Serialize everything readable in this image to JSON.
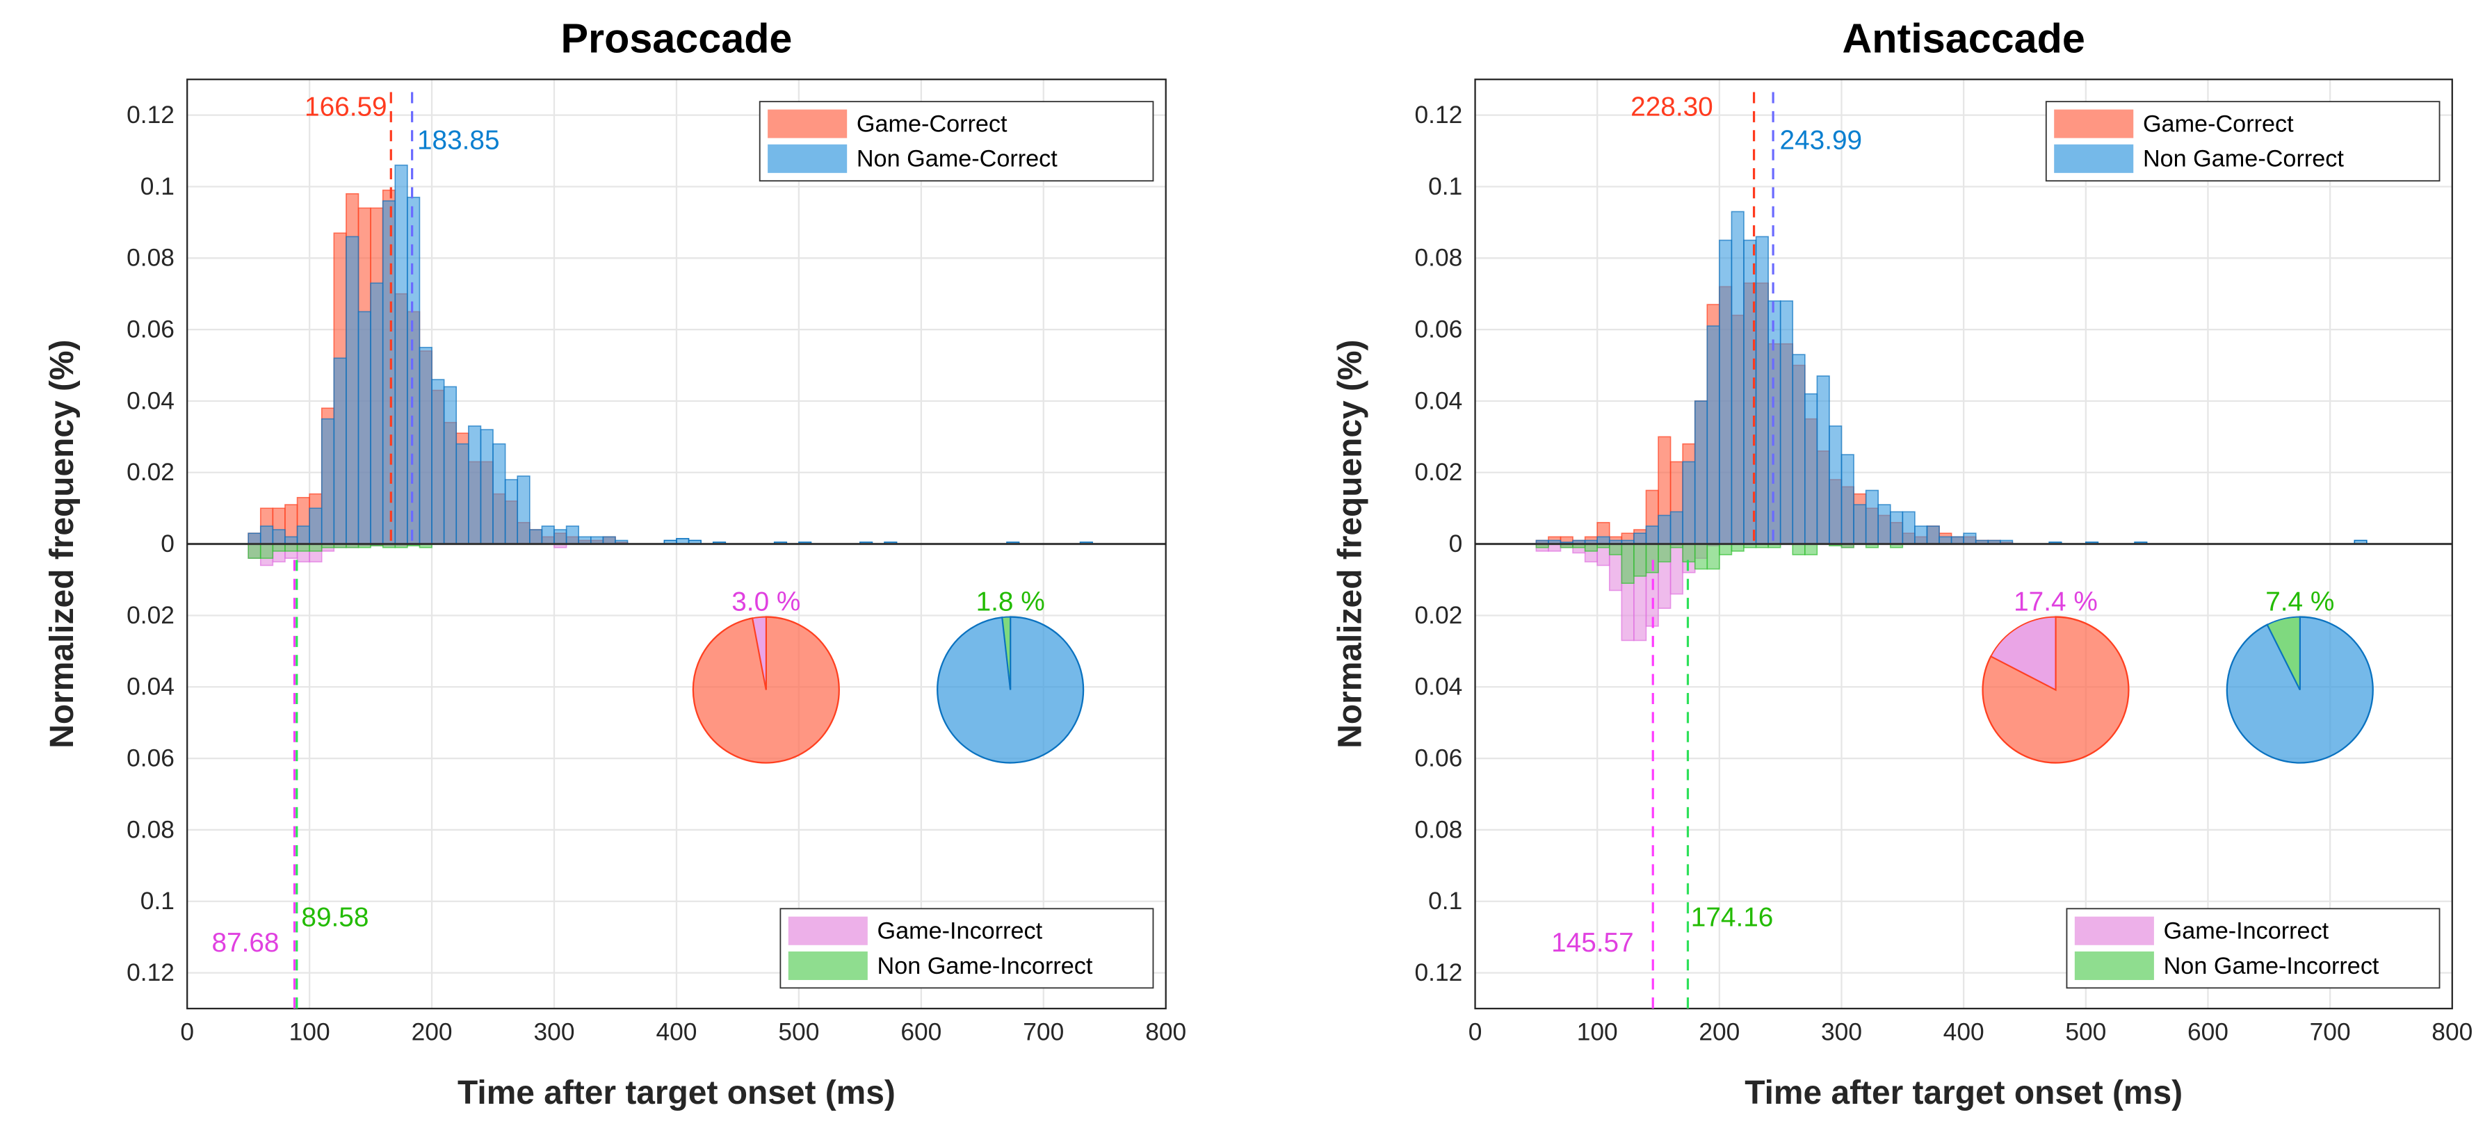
{
  "colors": {
    "game_correct": "#ff6a4d",
    "non_game_correct": "#3a9be0",
    "game_incorrect": "#e58ee0",
    "non_game_incorrect": "#5fcf5f",
    "label_red": "#ff3b1f",
    "label_blue": "#0a7fd0",
    "label_pink": "#e040e0",
    "label_green": "#22bb00",
    "median_blue_line": "#6a6aff"
  },
  "chart_data": [
    {
      "type": "bar",
      "title": "Prosaccade",
      "xlabel": "Time after target onset (ms)",
      "ylabel": "Normalized frequency (%)",
      "xlim": [
        0,
        800
      ],
      "ylim": [
        -0.13,
        0.13
      ],
      "xticks": [
        "0",
        "100",
        "200",
        "300",
        "400",
        "500",
        "600",
        "700",
        "800"
      ],
      "yticks_upper": [
        "0.12",
        "0.1",
        "0.08",
        "0.06",
        "0.04",
        "0.02",
        "0"
      ],
      "yticks_lower": [
        "0.02",
        "0.04",
        "0.06",
        "0.08",
        "0.1",
        "0.12"
      ],
      "grid": true,
      "bin_width": 10,
      "bin_start": 50,
      "series": [
        {
          "name": "Game-Correct",
          "direction": "up",
          "values": [
            0.003,
            0.01,
            0.01,
            0.011,
            0.013,
            0.014,
            0.038,
            0.087,
            0.098,
            0.094,
            0.094,
            0.099,
            0.07,
            0.065,
            0.054,
            0.043,
            0.034,
            0.031,
            0.023,
            0.023,
            0.014,
            0.012,
            0.006,
            0.004,
            0.002,
            0.003,
            0.002,
            0.001,
            0.001,
            0.002,
            0.0005
          ]
        },
        {
          "name": "Non Game-Correct",
          "direction": "up",
          "values": [
            0.003,
            0.005,
            0.004,
            0.002,
            0.005,
            0.01,
            0.035,
            0.052,
            0.086,
            0.065,
            0.073,
            0.096,
            0.106,
            0.097,
            0.055,
            0.046,
            0.044,
            0.028,
            0.033,
            0.032,
            0.028,
            0.018,
            0.019,
            0.004,
            0.005,
            0.004,
            0.005,
            0.002,
            0.002,
            0.002,
            0.001
          ]
        },
        {
          "name": "Game-Incorrect",
          "direction": "down",
          "values": [
            0.004,
            0.006,
            0.005,
            0.004,
            0.005,
            0.005,
            0.002,
            0.001,
            0.001,
            0.0005,
            0.0005,
            0.0005,
            0.0005,
            0,
            0,
            0,
            0,
            0,
            0,
            0,
            0,
            0,
            0,
            0,
            0,
            0.001
          ]
        },
        {
          "name": "Non Game-Incorrect",
          "direction": "down",
          "values": [
            0.004,
            0.004,
            0.002,
            0.002,
            0.002,
            0.002,
            0.001,
            0.001,
            0.001,
            0.001,
            0.0005,
            0.001,
            0.001,
            0.0005,
            0.001
          ]
        }
      ],
      "tail_non_game_correct": [
        [
          390,
          0.001
        ],
        [
          400,
          0.0015
        ],
        [
          410,
          0.001
        ],
        [
          430,
          0.0005
        ],
        [
          480,
          0.0005
        ],
        [
          500,
          0.0005
        ],
        [
          550,
          0.0005
        ],
        [
          570,
          0.0005
        ],
        [
          670,
          0.0005
        ],
        [
          730,
          0.0005
        ]
      ],
      "medians": [
        {
          "label": "166.59",
          "value": 166.59,
          "series": "Game-Correct",
          "side": "upper"
        },
        {
          "label": "183.85",
          "value": 183.85,
          "series": "Non Game-Correct",
          "side": "upper"
        },
        {
          "label": "87.68",
          "value": 87.68,
          "series": "Game-Incorrect",
          "side": "lower"
        },
        {
          "label": "89.58",
          "value": 89.58,
          "series": "Non Game-Incorrect",
          "side": "lower"
        }
      ],
      "pies": [
        {
          "label": "3.0 %",
          "incorrect_percent": 3.0,
          "group": "Game"
        },
        {
          "label": "1.8 %",
          "incorrect_percent": 1.8,
          "group": "Non Game"
        }
      ],
      "legend_upper": [
        "Game-Correct",
        "Non Game-Correct"
      ],
      "legend_lower": [
        "Game-Incorrect",
        "Non Game-Incorrect"
      ],
      "legend_placement": "top-right / bottom-right"
    },
    {
      "type": "bar",
      "title": "Antisaccade",
      "xlabel": "Time after target onset (ms)",
      "ylabel": "Normalized frequency (%)",
      "xlim": [
        0,
        800
      ],
      "ylim": [
        -0.13,
        0.13
      ],
      "xticks": [
        "0",
        "100",
        "200",
        "300",
        "400",
        "500",
        "600",
        "700",
        "800"
      ],
      "yticks_upper": [
        "0.12",
        "0.1",
        "0.08",
        "0.06",
        "0.04",
        "0.02",
        "0"
      ],
      "yticks_lower": [
        "0.02",
        "0.04",
        "0.06",
        "0.08",
        "0.1",
        "0.12"
      ],
      "grid": true,
      "bin_width": 10,
      "bin_start": 50,
      "series": [
        {
          "name": "Game-Correct",
          "direction": "up",
          "values": [
            0.001,
            0.002,
            0.002,
            0.001,
            0.002,
            0.006,
            0.002,
            0.003,
            0.004,
            0.015,
            0.03,
            0.023,
            0.028,
            0.04,
            0.067,
            0.072,
            0.064,
            0.073,
            0.073,
            0.056,
            0.056,
            0.05,
            0.035,
            0.026,
            0.018,
            0.016,
            0.014,
            0.01,
            0.008,
            0.006,
            0.003,
            0.002,
            0.005,
            0.003,
            0.002,
            0.002,
            0.001,
            0.001,
            0.0005
          ]
        },
        {
          "name": "Non Game-Correct",
          "direction": "up",
          "values": [
            0.001,
            0.001,
            0.0005,
            0.001,
            0.001,
            0.002,
            0.001,
            0.001,
            0.003,
            0.005,
            0.008,
            0.009,
            0.023,
            0.04,
            0.061,
            0.085,
            0.093,
            0.085,
            0.086,
            0.068,
            0.068,
            0.053,
            0.042,
            0.047,
            0.033,
            0.025,
            0.011,
            0.015,
            0.011,
            0.009,
            0.009,
            0.005,
            0.005,
            0.002,
            0.002,
            0.003,
            0.001,
            0.001,
            0.001
          ]
        },
        {
          "name": "Game-Incorrect",
          "direction": "down",
          "values": [
            0.002,
            0.002,
            0.001,
            0.0025,
            0.005,
            0.006,
            0.013,
            0.027,
            0.027,
            0.023,
            0.018,
            0.014,
            0.008,
            0.004,
            0.0005,
            0,
            0,
            0,
            0,
            0,
            0,
            0,
            0,
            0,
            0,
            0.001
          ]
        },
        {
          "name": "Non Game-Incorrect",
          "direction": "down",
          "values": [
            0.001,
            0,
            0.001,
            0.001,
            0.002,
            0.001,
            0.003,
            0.011,
            0.009,
            0.008,
            0.005,
            0.001,
            0.005,
            0.007,
            0.007,
            0.003,
            0.002,
            0.001,
            0.001,
            0.001,
            0,
            0.003,
            0.003,
            0,
            0.0005,
            0.001,
            0,
            0.001,
            0,
            0.001
          ]
        }
      ],
      "tail_non_game_correct": [
        [
          470,
          0.0005
        ],
        [
          500,
          0.0005
        ],
        [
          540,
          0.0005
        ],
        [
          720,
          0.001
        ]
      ],
      "medians": [
        {
          "label": "228.30",
          "value": 228.3,
          "series": "Game-Correct",
          "side": "upper"
        },
        {
          "label": "243.99",
          "value": 243.99,
          "series": "Non Game-Correct",
          "side": "upper"
        },
        {
          "label": "145.57",
          "value": 145.57,
          "series": "Game-Incorrect",
          "side": "lower"
        },
        {
          "label": "174.16",
          "value": 174.16,
          "series": "Non Game-Incorrect",
          "side": "lower"
        }
      ],
      "pies": [
        {
          "label": "17.4 %",
          "incorrect_percent": 17.4,
          "group": "Game"
        },
        {
          "label": "7.4 %",
          "incorrect_percent": 7.4,
          "group": "Non Game"
        }
      ],
      "legend_upper": [
        "Game-Correct",
        "Non Game-Correct"
      ],
      "legend_lower": [
        "Game-Incorrect",
        "Non Game-Incorrect"
      ],
      "legend_placement": "top-right / bottom-right"
    }
  ]
}
